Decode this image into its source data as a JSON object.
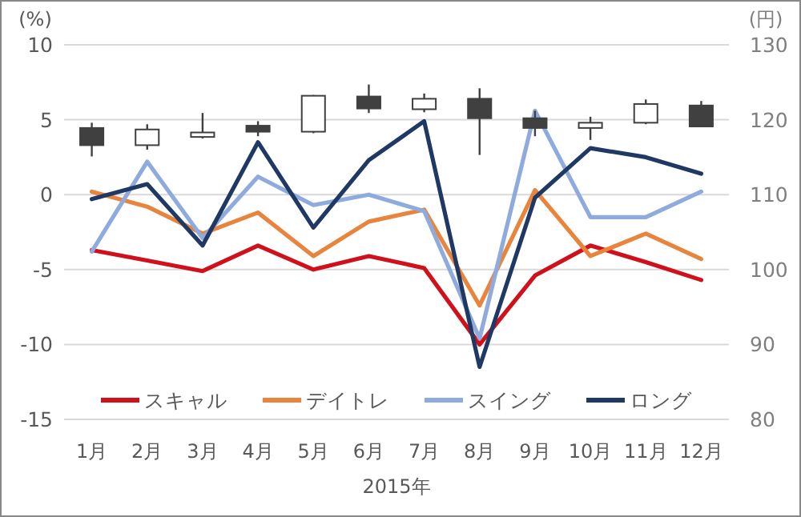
{
  "chart_data": {
    "type": "line",
    "xlabel": "2015年",
    "ylabel": "(%)",
    "y2label": "(円)",
    "categories": [
      "1月",
      "2月",
      "3月",
      "4月",
      "5月",
      "6月",
      "7月",
      "8月",
      "9月",
      "10月",
      "11月",
      "12月"
    ],
    "series": [
      {
        "name": "スキャル",
        "color": "#d0101a",
        "values": [
          -3.7,
          -4.4,
          -5.1,
          -3.4,
          -5.0,
          -4.1,
          -4.9,
          -10.0,
          -5.4,
          -3.4,
          -4.5,
          -5.7
        ]
      },
      {
        "name": "デイトレ",
        "color": "#e8843c",
        "values": [
          0.2,
          -0.8,
          -2.6,
          -1.2,
          -4.1,
          -1.8,
          -1.0,
          -7.4,
          0.3,
          -4.1,
          -2.6,
          -4.3
        ]
      },
      {
        "name": "スイング",
        "color": "#8faadc",
        "values": [
          -3.8,
          2.2,
          -2.9,
          1.2,
          -0.7,
          0.0,
          -1.1,
          -9.6,
          5.6,
          -1.5,
          -1.5,
          0.2
        ]
      },
      {
        "name": "ロング",
        "color": "#1f3864",
        "values": [
          -0.3,
          0.7,
          -3.4,
          3.5,
          -2.2,
          2.3,
          4.9,
          -11.5,
          -0.2,
          3.1,
          2.5,
          1.4
        ]
      },
      {
        "type": "candlestick",
        "axis": "y2",
        "color": "#404040",
        "ohlc": [
          [
            118.9,
            119.6,
            115.1,
            116.6
          ],
          [
            116.6,
            119.4,
            116.0,
            118.7
          ],
          [
            117.7,
            120.9,
            117.5,
            118.3
          ],
          [
            119.2,
            119.8,
            117.8,
            118.4
          ],
          [
            118.4,
            123.3,
            118.2,
            123.2
          ],
          [
            123.1,
            124.7,
            120.9,
            121.5
          ],
          [
            121.4,
            123.5,
            121.0,
            122.8
          ],
          [
            122.8,
            124.2,
            115.3,
            120.2
          ],
          [
            120.2,
            121.2,
            117.8,
            118.9
          ],
          [
            118.9,
            120.4,
            117.3,
            119.6
          ],
          [
            119.6,
            122.7,
            119.4,
            122.1
          ],
          [
            121.9,
            122.5,
            119.0,
            119.1
          ]
        ]
      }
    ],
    "ylim": [
      -15,
      10
    ],
    "yticks": [
      -15,
      -10,
      -5,
      0,
      5,
      10
    ],
    "y2lim": [
      80,
      130
    ],
    "y2ticks": [
      80,
      90,
      100,
      110,
      120,
      130
    ],
    "grid": "y",
    "legend": "bottom"
  }
}
